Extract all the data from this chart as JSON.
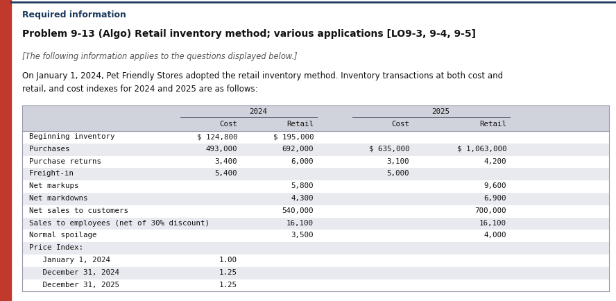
{
  "title_required": "Required information",
  "title_problem": "Problem 9-13 (Algo) Retail inventory method; various applications [LO9-3, 9-4, 9-5]",
  "subtitle": "[The following information applies to the questions displayed below.]",
  "body_line1": "On January 1, 2024, Pet Friendly Stores adopted the retail inventory method. Inventory transactions at both cost and",
  "body_line2": "retail, and cost indexes for 2024 and 2025 are as follows:",
  "header_year_2024": "2024",
  "header_year_2025": "2025",
  "header_col1": "Cost",
  "header_col2": "Retail",
  "header_col3": "Cost",
  "header_col4": "Retail",
  "rows": [
    {
      "label": "Beginning inventory",
      "c1": "$ 124,800",
      "c2": "$ 195,000",
      "c3": "",
      "c4": ""
    },
    {
      "label": "Purchases",
      "c1": "493,000",
      "c2": "692,000",
      "c3": "$ 635,000",
      "c4": "$ 1,063,000"
    },
    {
      "label": "Purchase returns",
      "c1": "3,400",
      "c2": "6,000",
      "c3": "3,100",
      "c4": "4,200"
    },
    {
      "label": "Freight-in",
      "c1": "5,400",
      "c2": "",
      "c3": "5,000",
      "c4": ""
    },
    {
      "label": "Net markups",
      "c1": "",
      "c2": "5,800",
      "c3": "",
      "c4": "9,600"
    },
    {
      "label": "Net markdowns",
      "c1": "",
      "c2": "4,300",
      "c3": "",
      "c4": "6,900"
    },
    {
      "label": "Net sales to customers",
      "c1": "",
      "c2": "540,000",
      "c3": "",
      "c4": "700,000"
    },
    {
      "label": "Sales to employees (net of 30% discount)",
      "c1": "",
      "c2": "16,100",
      "c3": "",
      "c4": "16,100"
    },
    {
      "label": "Normal spoilage",
      "c1": "",
      "c2": "3,500",
      "c3": "",
      "c4": "4,000"
    },
    {
      "label": "Price Index:",
      "c1": "",
      "c2": "",
      "c3": "",
      "c4": ""
    },
    {
      "label": "   January 1, 2024",
      "c1": "1.00",
      "c2": "",
      "c3": "",
      "c4": ""
    },
    {
      "label": "   December 31, 2024",
      "c1": "1.25",
      "c2": "",
      "c3": "",
      "c4": ""
    },
    {
      "label": "   December 31, 2025",
      "c1": "1.25",
      "c2": "",
      "c3": "",
      "c4": ""
    }
  ],
  "row_shading": [
    false,
    true,
    false,
    true,
    false,
    true,
    false,
    true,
    false,
    true,
    false,
    true,
    false
  ],
  "bg_color": "#ffffff",
  "header_bg": "#d0d3dc",
  "row_shade_color": "#e8eaf0",
  "left_accent_color": "#c0392b",
  "top_border_color": "#1a3a5c",
  "title_required_color": "#1a3a5c",
  "title_problem_color": "#111111",
  "subtitle_color": "#555555",
  "body_color": "#111111",
  "table_text_color": "#111111",
  "table_border_color": "#9999aa"
}
